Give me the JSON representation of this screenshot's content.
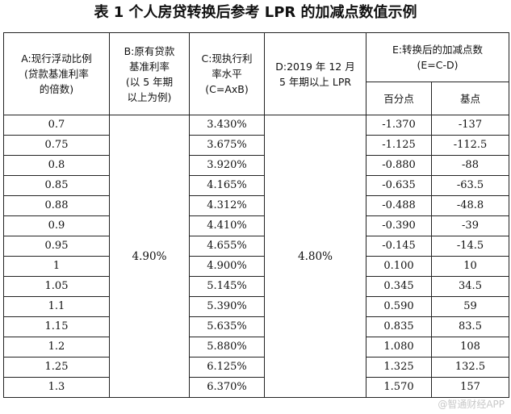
{
  "title": "表 1  个人房贷转换后参考 LPR 的加减点数值示例",
  "table": {
    "headers": {
      "col_a": [
        "A:现行浮动比例",
        "(贷款基准利率",
        "的倍数)"
      ],
      "col_b": [
        "B:原有贷款",
        "基准利率",
        "(以 5 年期",
        "以上为例)"
      ],
      "col_c": [
        "C:现执行利",
        "率水平",
        "(C=AxB)"
      ],
      "col_d": [
        "D:2019 年 12 月",
        "5 年期以上 LPR"
      ],
      "col_e": [
        "E:转换后的加减点数",
        "(E=C-D)"
      ],
      "col_e_sub": [
        "百分点",
        "基点"
      ]
    },
    "base_rate": "4.90%",
    "lpr": "4.80%",
    "rows": [
      {
        "a": "0.7",
        "c": "3.430%",
        "pct": "-1.370",
        "bp": "-137"
      },
      {
        "a": "0.75",
        "c": "3.675%",
        "pct": "-1.125",
        "bp": "-112.5"
      },
      {
        "a": "0.8",
        "c": "3.920%",
        "pct": "-0.880",
        "bp": "-88"
      },
      {
        "a": "0.85",
        "c": "4.165%",
        "pct": "-0.635",
        "bp": "-63.5"
      },
      {
        "a": "0.88",
        "c": "4.312%",
        "pct": "-0.488",
        "bp": "-48.8"
      },
      {
        "a": "0.9",
        "c": "4.410%",
        "pct": "-0.390",
        "bp": "-39"
      },
      {
        "a": "0.95",
        "c": "4.655%",
        "pct": "-0.145",
        "bp": "-14.5"
      },
      {
        "a": "1",
        "c": "4.900%",
        "pct": "0.100",
        "bp": "10"
      },
      {
        "a": "1.05",
        "c": "5.145%",
        "pct": "0.345",
        "bp": "34.5"
      },
      {
        "a": "1.1",
        "c": "5.390%",
        "pct": "0.590",
        "bp": "59"
      },
      {
        "a": "1.15",
        "c": "5.635%",
        "pct": "0.835",
        "bp": "83.5"
      },
      {
        "a": "1.2",
        "c": "5.880%",
        "pct": "1.080",
        "bp": "108"
      },
      {
        "a": "1.25",
        "c": "6.125%",
        "pct": "1.325",
        "bp": "132.5"
      },
      {
        "a": "1.3",
        "c": "6.370%",
        "pct": "1.570",
        "bp": "157"
      }
    ]
  },
  "watermark": "@智通财经APP"
}
